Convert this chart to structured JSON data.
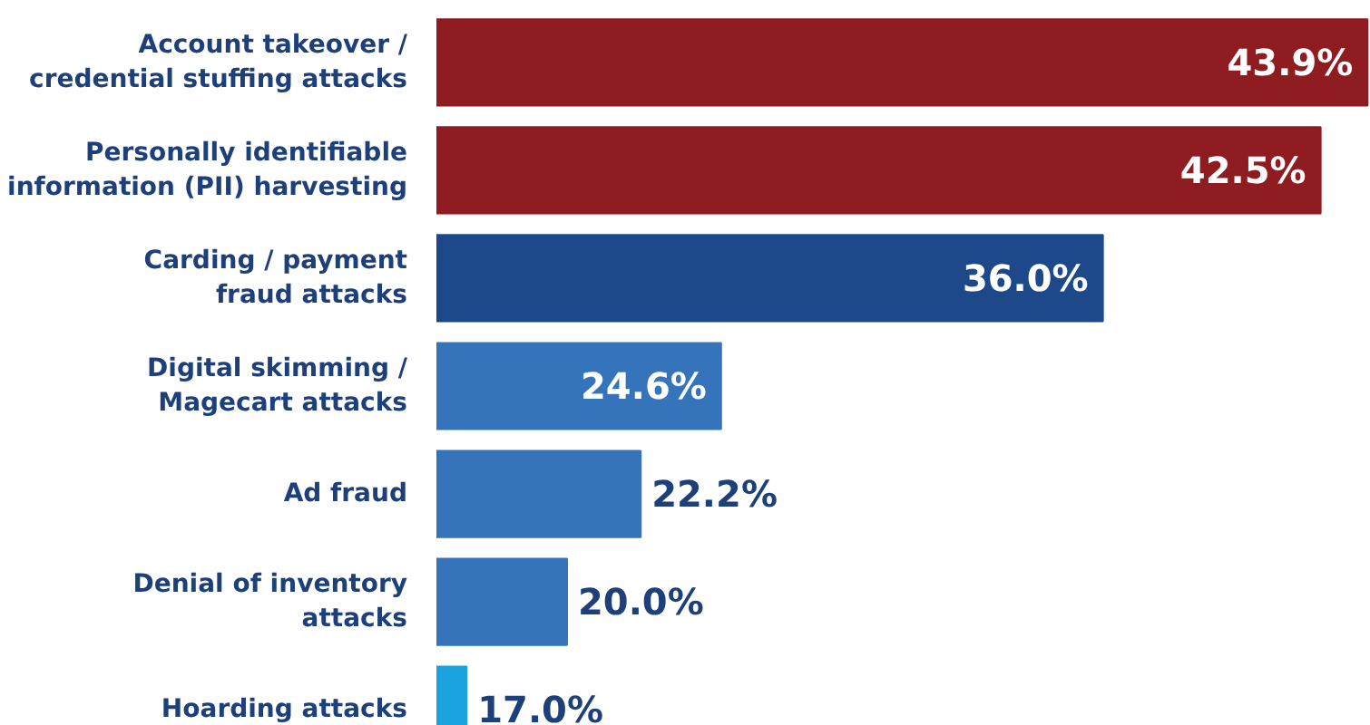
{
  "chart_data": {
    "type": "bar",
    "orientation": "horizontal",
    "categories": [
      "Account takeover /\ncredential stuffing attacks",
      "Personally identifiable\ninformation (PII) harvesting",
      "Carding / payment\nfraud attacks",
      "Digital skimming /\nMagecart attacks",
      "Ad fraud",
      "Denial of inventory\nattacks",
      "Hoarding attacks"
    ],
    "values": [
      43.9,
      42.5,
      36.0,
      24.6,
      22.2,
      20.0,
      17.0
    ],
    "colors": [
      "#8f1c21",
      "#8f1c21",
      "#1d4889",
      "#3574bb",
      "#3574bb",
      "#3574bb",
      "#1ba3e0"
    ],
    "value_labels": [
      "43.9%",
      "42.5%",
      "36.0%",
      "24.6%",
      "22.2%",
      "20.0%",
      "17.0%"
    ],
    "xlim": [
      16.1,
      44.0
    ],
    "tick_labels": "y",
    "grid": false
  }
}
